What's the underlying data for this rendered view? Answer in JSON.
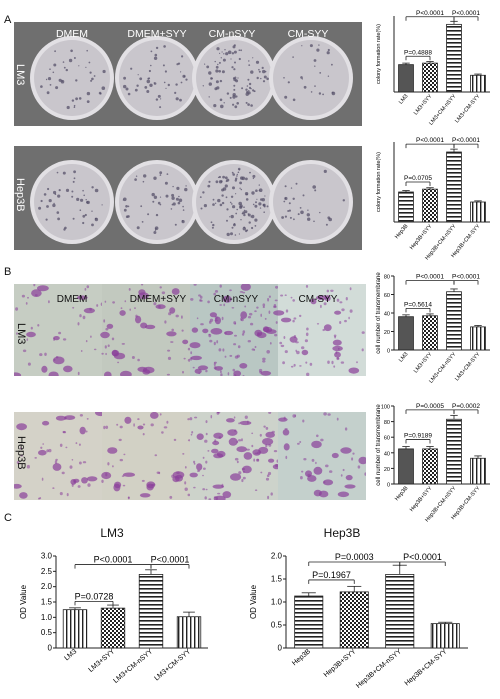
{
  "panels": {
    "A": {
      "letter": "A",
      "columns": [
        "DMEM",
        "DMEM+SYY",
        "CM-nSYY",
        "CM-SYY"
      ],
      "rows": [
        "LM3",
        "Hep3B"
      ]
    },
    "B": {
      "letter": "B",
      "columns": [
        "DMEM",
        "DMEM+SYY",
        "CM-nSYY",
        "CM-SYY"
      ],
      "rows": [
        "LM3",
        "Hep3B"
      ]
    },
    "C": {
      "letter": "C",
      "titles": [
        "LM3",
        "Hep3B"
      ]
    }
  },
  "chart_data": [
    {
      "id": "A-LM3",
      "type": "bar",
      "categories": [
        "LM3",
        "LM3+SYY",
        "LM3+CM-nSYY",
        "LM3+CM-SYY"
      ],
      "values": [
        1.8,
        1.9,
        4.45,
        1.1
      ],
      "errors": [
        0.1,
        0.1,
        0.2,
        0.08
      ],
      "ylabel": "colony formation rate(%)",
      "ylim": [
        0,
        5
      ],
      "yticks": [],
      "ytick_labels": [],
      "patterns": [
        "dark",
        "check",
        "hstripe",
        "vstripe"
      ],
      "comparisons": [
        {
          "from": 0,
          "to": 1,
          "label": "P=0.4888",
          "level": 2.35
        },
        {
          "from": 0,
          "to": 2,
          "label": "P<0.0001",
          "level": 4.95
        },
        {
          "from": 2,
          "to": 3,
          "label": "P<0.0001",
          "level": 4.95
        }
      ]
    },
    {
      "id": "A-Hep3B",
      "type": "bar",
      "categories": [
        "Hep3B",
        "Hep3B+SYY",
        "Hep3B+CM-nSYY",
        "Hep3B+CM-SYY"
      ],
      "values": [
        2.1,
        2.3,
        4.9,
        1.4
      ],
      "errors": [
        0.1,
        0.1,
        0.2,
        0.08
      ],
      "ylabel": "colony formation rate(%)",
      "ylim": [
        0,
        5.6
      ],
      "yticks": [],
      "ytick_labels": [],
      "patterns": [
        "hstripe",
        "check",
        "hstripe",
        "vstripe"
      ],
      "comparisons": [
        {
          "from": 0,
          "to": 1,
          "label": "P=0.0705",
          "level": 2.8
        },
        {
          "from": 0,
          "to": 2,
          "label": "P<0.0001",
          "level": 5.45
        },
        {
          "from": 2,
          "to": 3,
          "label": "P<0.0001",
          "level": 5.45
        }
      ]
    },
    {
      "id": "B-LM3",
      "type": "bar",
      "categories": [
        "LM3",
        "LM3+SYY",
        "LM3+CM-nSYY",
        "LM3+CM-SYY"
      ],
      "values": [
        36,
        37,
        63,
        25
      ],
      "errors": [
        2,
        2,
        3,
        1.5
      ],
      "ylabel": "cell number of transmembrane",
      "ylim": [
        0,
        80
      ],
      "yticks": [
        0,
        20,
        40,
        60,
        80
      ],
      "ytick_labels": [
        "0",
        "20",
        "40",
        "60",
        "80"
      ],
      "patterns": [
        "dark",
        "check",
        "hstripe",
        "vstripe"
      ],
      "comparisons": [
        {
          "from": 0,
          "to": 1,
          "label": "P=0.5614",
          "level": 45
        },
        {
          "from": 0,
          "to": 2,
          "label": "P<0.0001",
          "level": 75
        },
        {
          "from": 2,
          "to": 3,
          "label": "P<0.0001",
          "level": 75
        }
      ]
    },
    {
      "id": "B-Hep3B",
      "type": "bar",
      "categories": [
        "Hep3B",
        "Hep3B+SYY",
        "Hep3B+CM-nSYY",
        "Hep3B+CM-SYY"
      ],
      "values": [
        45,
        45,
        83,
        33
      ],
      "errors": [
        3,
        3,
        5,
        3
      ],
      "ylabel": "cell number of transmembrane",
      "ylim": [
        0,
        100
      ],
      "yticks": [
        0,
        20,
        40,
        60,
        80,
        100
      ],
      "ytick_labels": [
        "0",
        "20",
        "40",
        "60",
        "80",
        "100"
      ],
      "patterns": [
        "dark",
        "check",
        "hstripe",
        "vstripe"
      ],
      "comparisons": [
        {
          "from": 0,
          "to": 1,
          "label": "P=0.9189",
          "level": 57
        },
        {
          "from": 0,
          "to": 2,
          "label": "P=0.0005",
          "level": 95
        },
        {
          "from": 2,
          "to": 3,
          "label": "P=0.0002",
          "level": 95
        }
      ]
    },
    {
      "id": "C-LM3",
      "type": "bar",
      "categories": [
        "LM3",
        "LM3+SYY",
        "LM3+CM-nSYY",
        "LM3+CM-SYY"
      ],
      "values": [
        1.25,
        1.3,
        2.4,
        1.02
      ],
      "errors": [
        0.06,
        0.1,
        0.15,
        0.15
      ],
      "ylabel": "OD Value",
      "ylim": [
        0,
        3.0
      ],
      "yticks": [
        0,
        0.5,
        1.0,
        1.5,
        2.0,
        2.5,
        3.0
      ],
      "ytick_labels": [
        "0",
        "0.5",
        "1.0",
        "1.5",
        "2.0",
        "2.5",
        "3.0"
      ],
      "patterns": [
        "vstripe",
        "check",
        "hstripe",
        "vstripe"
      ],
      "comparisons": [
        {
          "from": 0,
          "to": 1,
          "label": "P=0.0728",
          "level": 1.52
        },
        {
          "from": 0,
          "to": 2,
          "label": "P<0.0001",
          "level": 2.72
        },
        {
          "from": 2,
          "to": 3,
          "label": "P<0.0001",
          "level": 2.72
        }
      ]
    },
    {
      "id": "C-Hep3B",
      "type": "bar",
      "categories": [
        "Hep3B",
        "Hep3B+SYY",
        "Hep3B+CM-nSYY",
        "Hep3B+CM-SYY"
      ],
      "values": [
        1.13,
        1.22,
        1.6,
        0.53
      ],
      "errors": [
        0.07,
        0.12,
        0.2,
        0.03
      ],
      "ylabel": "OD Value",
      "ylim": [
        0,
        2.0
      ],
      "yticks": [
        0,
        0.5,
        1.0,
        1.5,
        2.0
      ],
      "ytick_labels": [
        "0",
        "0.5",
        "1.0",
        "1.5",
        "2.0"
      ],
      "patterns": [
        "hstripe",
        "check",
        "hstripe",
        "vstripe"
      ],
      "comparisons": [
        {
          "from": 0,
          "to": 1,
          "label": "P=0.1967",
          "level": 1.48
        },
        {
          "from": 0,
          "to": 2,
          "label": "P=0.0003",
          "level": 1.87
        },
        {
          "from": 2,
          "to": 3,
          "label": "P<0.0001",
          "level": 1.87
        }
      ]
    }
  ],
  "colors": {
    "plate_bg": "#6f6f6f",
    "dish": "#c9c6cc",
    "dish_rim": "#e2e0e4",
    "colony": "#55506a",
    "transwell_bg": "#c9cfc8",
    "cell": "#8a3f9a",
    "bar_dark": "#555555"
  }
}
